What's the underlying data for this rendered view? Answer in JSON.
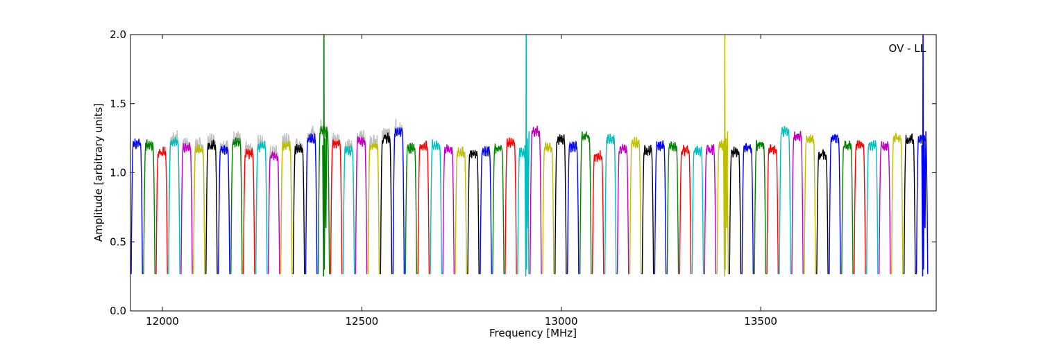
{
  "chart_data": {
    "type": "line",
    "title": "",
    "xlabel": "Frequency [MHz]",
    "ylabel": "Amplitude [arbitrary units]",
    "annotation": "OV - LL",
    "xlim": [
      11920,
      13940
    ],
    "ylim": [
      0.0,
      2.0
    ],
    "x_ticks": [
      12000,
      12500,
      13000,
      13500
    ],
    "y_ticks": [
      "0.0",
      "0.5",
      "1.0",
      "1.5",
      "2.0"
    ],
    "grid": false,
    "legend": "none",
    "channels": {
      "start_mhz": 11920,
      "width_mhz": 31.25,
      "count": 64,
      "color_cycle": [
        "#0000ff",
        "#008000",
        "#ff0000",
        "#00bfbf",
        "#bf00bf",
        "#bfbf00",
        "#000000"
      ],
      "levels": [
        1.21,
        1.2,
        1.15,
        1.22,
        1.18,
        1.17,
        1.2,
        1.17,
        1.22,
        1.14,
        1.19,
        1.12,
        1.2,
        1.17,
        1.25,
        1.3,
        1.21,
        1.16,
        1.23,
        1.2,
        1.25,
        1.3,
        1.18,
        1.19,
        1.2,
        1.17,
        1.15,
        1.14,
        1.16,
        1.17,
        1.22,
        1.15,
        1.3,
        1.18,
        1.24,
        1.19,
        1.26,
        1.12,
        1.25,
        1.17,
        1.22,
        1.16,
        1.2,
        1.19,
        1.16,
        1.16,
        1.17,
        1.2,
        1.15,
        1.18,
        1.2,
        1.17,
        1.3,
        1.26,
        1.24,
        1.13,
        1.25,
        1.2,
        1.2,
        1.2,
        1.19,
        1.25,
        1.24,
        1.25
      ],
      "dip_min": 0.27
    },
    "spikes": [
      {
        "x": 12405,
        "y": 2.0,
        "color": "#008000"
      },
      {
        "x": 12912,
        "y": 2.0,
        "color": "#00bfbf"
      },
      {
        "x": 13410,
        "y": 2.0,
        "color": "#bfbf00"
      },
      {
        "x": 13907,
        "y": 2.0,
        "color": "#0000ff"
      }
    ],
    "reference_series": {
      "color": "#c0c0c0",
      "x_range": [
        12000,
        12600
      ]
    }
  }
}
